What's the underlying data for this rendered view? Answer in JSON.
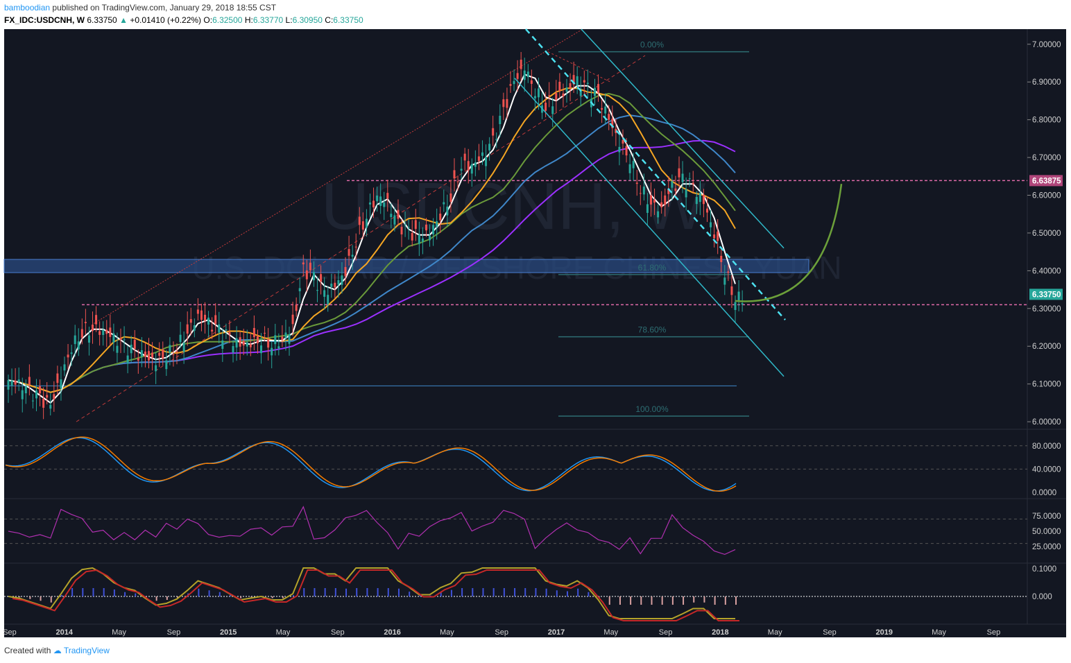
{
  "header": {
    "publisher": "bamboodian",
    "published_text": "published on TradingView.com, January 29, 2018 18:55 CST",
    "symbol": "FX_IDC:USDCNH, W",
    "last": "6.33750",
    "change_arrow": "▲",
    "change": "+0.01410 (+0.22%)",
    "o_label": "O:",
    "o": "6.32500",
    "h_label": "H:",
    "h": "6.33770",
    "l_label": "L:",
    "l": "6.30950",
    "c_label": "C:",
    "c": "6.33750"
  },
  "watermark": {
    "symbol": "USDCNH, W",
    "description": "U.S. DOLLAR / OFFSHORE CHINESE YUAN"
  },
  "footer": {
    "created_with": "Created with",
    "brand": "TradingView"
  },
  "colors": {
    "background": "#131722",
    "candle_up": "#26a69a",
    "candle_down": "#ef5350",
    "ema_fast": "#ffffff",
    "ema_orange": "#f5a623",
    "ema_green": "#6a9a3a",
    "ema_blue": "#3f87c9",
    "ema_purple": "#9b30ff",
    "channel": "#2fb8c8",
    "pink_line": "#e06aa8"
  },
  "chart_data": {
    "type": "candlestick",
    "symbol": "FX_IDC:USDCNH",
    "interval": "W",
    "price_axis": {
      "ticks": [
        "7.00000",
        "6.90000",
        "6.80000",
        "6.70000",
        "6.60000",
        "6.50000",
        "6.40000",
        "6.30000",
        "6.20000",
        "6.10000",
        "6.00000"
      ],
      "range": [
        5.98,
        7.04
      ]
    },
    "labels": {
      "horizontal_level": "6.63875",
      "last_price": "6.33750"
    },
    "fibonacci": [
      "0.00%",
      "61.80%",
      "78.60%",
      "100.00%"
    ],
    "time_axis": [
      "Sep",
      "2014",
      "May",
      "Sep",
      "2015",
      "May",
      "Sep",
      "2016",
      "May",
      "Sep",
      "2017",
      "May",
      "Sep",
      "2018",
      "May",
      "Sep",
      "2019",
      "May",
      "Sep"
    ],
    "close_path": [
      6.11,
      6.1,
      6.08,
      6.06,
      6.04,
      6.12,
      6.2,
      6.24,
      6.25,
      6.24,
      6.22,
      6.2,
      6.18,
      6.17,
      6.16,
      6.18,
      6.2,
      6.24,
      6.28,
      6.26,
      6.24,
      6.22,
      6.2,
      6.21,
      6.22,
      6.21,
      6.22,
      6.25,
      6.4,
      6.38,
      6.34,
      6.36,
      6.4,
      6.48,
      6.55,
      6.6,
      6.58,
      6.52,
      6.5,
      6.49,
      6.5,
      6.55,
      6.6,
      6.68,
      6.68,
      6.7,
      6.74,
      6.82,
      6.9,
      6.94,
      6.88,
      6.84,
      6.86,
      6.88,
      6.9,
      6.88,
      6.86,
      6.8,
      6.74,
      6.7,
      6.62,
      6.58,
      6.56,
      6.62,
      6.64,
      6.62,
      6.58,
      6.5,
      6.4,
      6.33
    ],
    "indicators": {
      "stochastic": {
        "ticks": [
          "80.0000",
          "40.0000",
          "0.0000"
        ]
      },
      "rsi": {
        "ticks": [
          "75.0000",
          "50.0000",
          "25.0000"
        ]
      },
      "macd": {
        "ticks": [
          "0.1000",
          "0.000"
        ]
      }
    }
  }
}
